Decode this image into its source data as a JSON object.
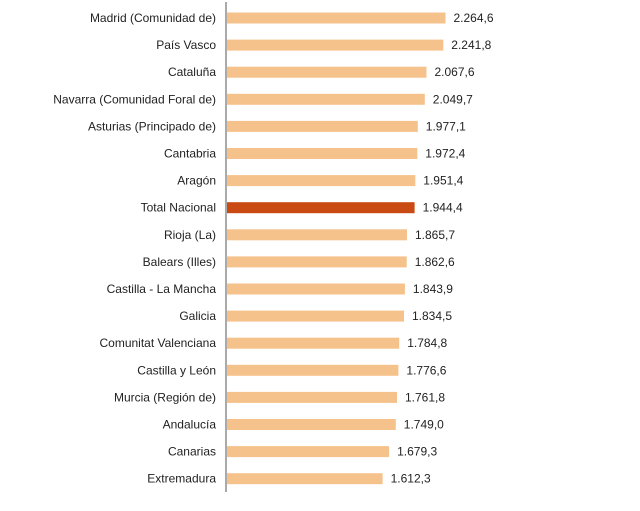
{
  "chart_data": {
    "type": "bar",
    "orientation": "horizontal",
    "categories": [
      "Madrid (Comunidad de)",
      "País Vasco",
      "Cataluña",
      "Navarra (Comunidad Foral de)",
      "Asturias (Principado de)",
      "Cantabria",
      "Aragón",
      "Total Nacional",
      "Rioja (La)",
      "Balears (Illes)",
      "Castilla - La Mancha",
      "Galicia",
      "Comunitat Valenciana",
      "Castilla y León",
      "Murcia (Región de)",
      "Andalucía",
      "Canarias",
      "Extremadura"
    ],
    "values": [
      2264.6,
      2241.8,
      2067.6,
      2049.7,
      1977.1,
      1972.4,
      1951.4,
      1944.4,
      1865.7,
      1862.6,
      1843.9,
      1834.5,
      1784.8,
      1776.6,
      1761.8,
      1749.0,
      1679.3,
      1612.3
    ],
    "value_labels": [
      "2.264,6",
      "2.241,8",
      "2.067,6",
      "2.049,7",
      "1.977,1",
      "1.972,4",
      "1.951,4",
      "1.944,4",
      "1.865,7",
      "1.862,6",
      "1.843,9",
      "1.834,5",
      "1.784,8",
      "1.776,6",
      "1.761,8",
      "1.749,0",
      "1.679,3",
      "1.612,3"
    ],
    "highlight": "Total Nacional",
    "xlim": [
      0,
      2500
    ],
    "grid": false,
    "title": "",
    "xlabel": "",
    "ylabel": ""
  },
  "colors": {
    "bar": "#f6c28b",
    "highlight": "#c94a12",
    "axis": "#555555",
    "text": "#222222"
  }
}
